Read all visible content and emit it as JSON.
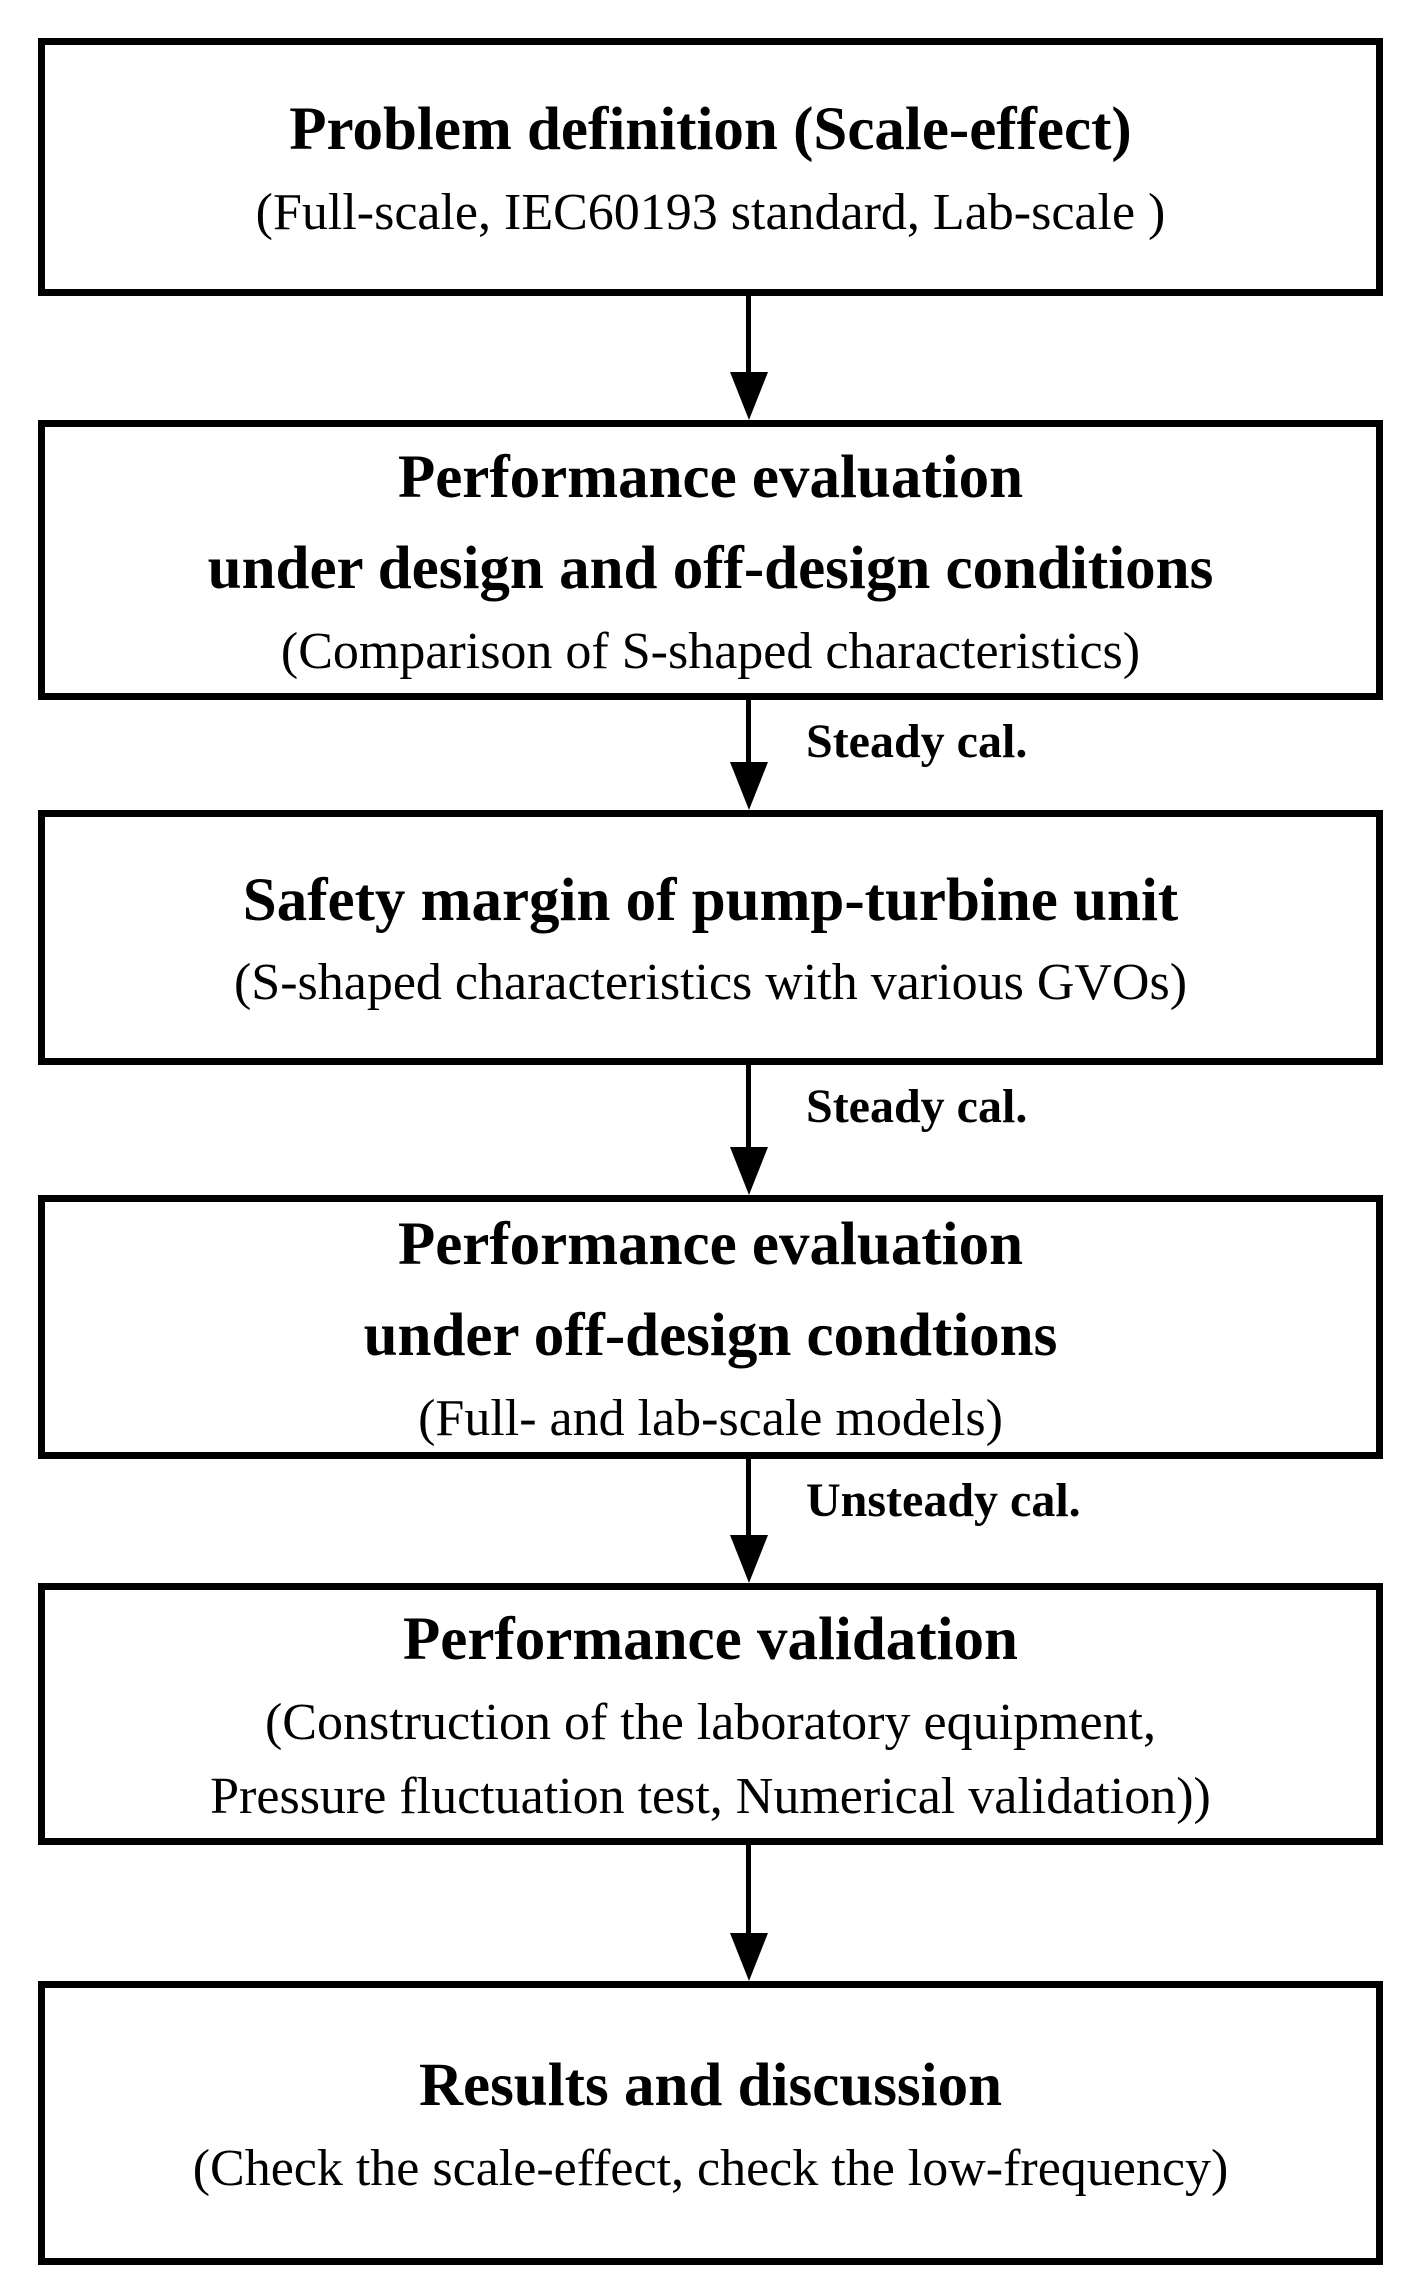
{
  "flowchart": {
    "colors": {
      "border": "#000000",
      "background": "#ffffff",
      "text": "#000000"
    },
    "boxes": [
      {
        "title_lines": [
          "Problem definition (Scale-effect)"
        ],
        "subtitle_lines": [
          "(Full-scale, IEC60193 standard, Lab-scale )"
        ]
      },
      {
        "title_lines": [
          "Performance evaluation",
          "under design and off-design conditions"
        ],
        "subtitle_lines": [
          "(Comparison of S-shaped characteristics)"
        ]
      },
      {
        "title_lines": [
          "Safety margin of pump-turbine unit"
        ],
        "subtitle_lines": [
          "(S-shaped characteristics with various GVOs)"
        ]
      },
      {
        "title_lines": [
          "Performance evaluation",
          "under off-design condtions"
        ],
        "subtitle_lines": [
          "(Full- and lab-scale models)"
        ]
      },
      {
        "title_lines": [
          "Performance validation"
        ],
        "subtitle_lines": [
          "(Construction of the laboratory equipment,",
          "Pressure fluctuation test, Numerical validation))"
        ]
      },
      {
        "title_lines": [
          "Results and discussion"
        ],
        "subtitle_lines": [
          "(Check the scale-effect, check the low-frequency)"
        ]
      }
    ],
    "arrows": [
      {
        "label": ""
      },
      {
        "label": "Steady cal."
      },
      {
        "label": "Steady cal."
      },
      {
        "label": "Unsteady cal."
      },
      {
        "label": ""
      }
    ]
  }
}
